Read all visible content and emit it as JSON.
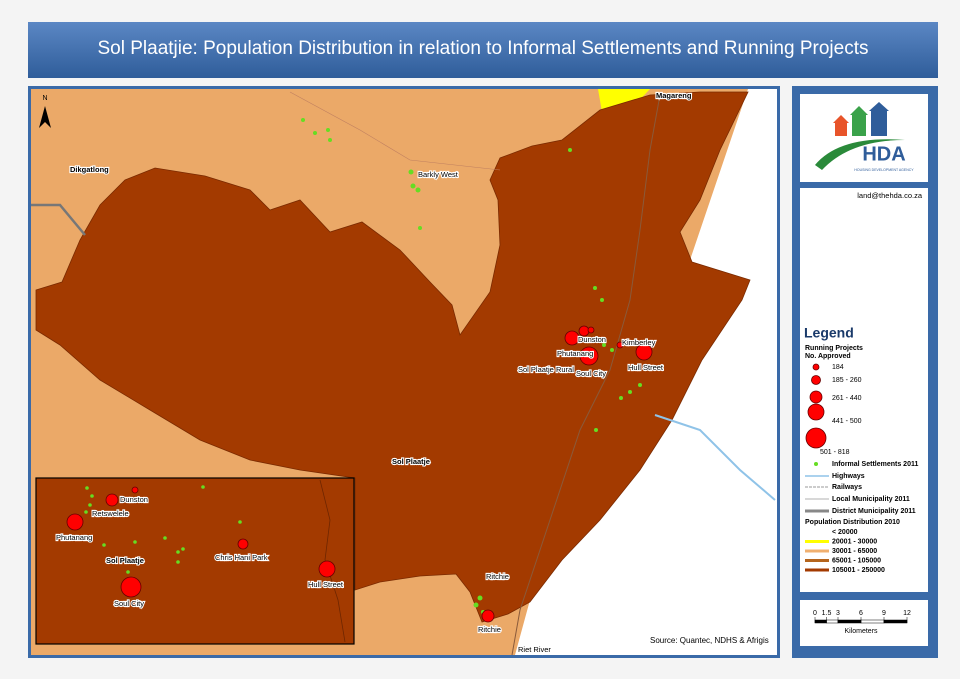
{
  "header": {
    "title": "Sol Plaatjie: Population Distribution in relation to Informal Settlements and Running Projects"
  },
  "map": {
    "north": "N",
    "labels": [
      "Dikgatlong",
      "Barkly West",
      "Magareng",
      "Dunston",
      "Kimberley",
      "Phutanang",
      "Sol Plaatje Rural",
      "Soul City",
      "Hull Street",
      "Sol Plaatje",
      "Ritchie",
      "Ritchie",
      "Riet River"
    ],
    "inset_labels": [
      "Dunston",
      "Retswelele",
      "Phutanang",
      "Sol Plaatje",
      "Chris Hani Park",
      "Hull Street",
      "Soul City"
    ],
    "source": "Source: Quantec, NDHS & Afrigis"
  },
  "panel": {
    "logo": "HDA",
    "logo_subtitle": "HOUSING DEVELOPMENT AGENCY",
    "email": "land@thehda.co.za",
    "legend": {
      "title": "Legend",
      "projects_title": "Running Projects",
      "projects_subtitle": "No. Approved",
      "project_classes": [
        "184",
        "185 - 260",
        "261 - 440",
        "441 - 500",
        "501 - 818"
      ],
      "layers": [
        "Informal Settlements 2011",
        "Highways",
        "Railways",
        "Local Municipality 2011",
        "District Municipality 2011"
      ],
      "population_title": "Population Distribution 2010",
      "population_classes": [
        {
          "label": "< 20000",
          "color": "#ffffff"
        },
        {
          "label": "20001 - 30000",
          "color": "#ffff00"
        },
        {
          "label": "30001 - 65000",
          "color": "#f0b070"
        },
        {
          "label": "65001 - 105000",
          "color": "#b5651d"
        },
        {
          "label": "105001 - 250000",
          "color": "#a33a00"
        }
      ]
    },
    "scale": {
      "ticks": [
        0,
        1.5,
        3,
        6,
        9,
        12
      ],
      "unit": "Kilometers"
    }
  }
}
